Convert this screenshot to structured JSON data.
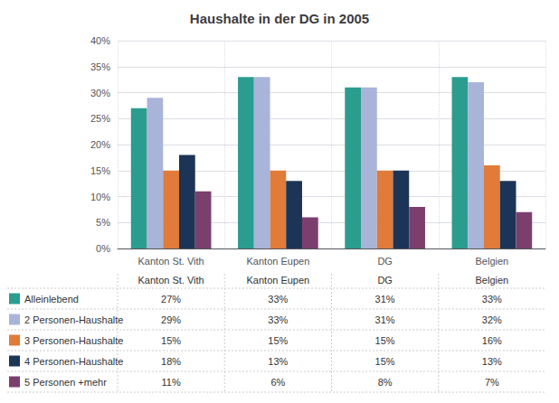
{
  "chart_data": {
    "type": "bar",
    "title": "Haushalte in der DG in 2005",
    "categories": [
      "Kanton St. Vith",
      "Kanton Eupen",
      "DG",
      "Belgien"
    ],
    "series": [
      {
        "name": "Alleinlebend",
        "color": "#2a9d8f",
        "values": [
          27,
          33,
          31,
          33
        ],
        "value_labels": [
          "27%",
          "33%",
          "31%",
          "33%"
        ]
      },
      {
        "name": "2 Personen-Haushalte",
        "color": "#a8b4d8",
        "values": [
          29,
          33,
          31,
          32
        ],
        "value_labels": [
          "29%",
          "33%",
          "31%",
          "32%"
        ]
      },
      {
        "name": "3 Personen-Haushalte",
        "color": "#e07b39",
        "values": [
          15,
          15,
          15,
          16
        ],
        "value_labels": [
          "15%",
          "15%",
          "15%",
          "16%"
        ]
      },
      {
        "name": "4 Personen-Haushalte",
        "color": "#1c3557",
        "values": [
          18,
          13,
          15,
          13
        ],
        "value_labels": [
          "18%",
          "13%",
          "15%",
          "13%"
        ]
      },
      {
        "name": "5 Personen +mehr",
        "color": "#7b3f6e",
        "values": [
          11,
          6,
          8,
          7
        ],
        "value_labels": [
          "11%",
          "6%",
          "8%",
          "7%"
        ]
      }
    ],
    "ylim": [
      0,
      40
    ],
    "yticks": [
      {
        "value": 0,
        "label": "0%"
      },
      {
        "value": 5,
        "label": "5%"
      },
      {
        "value": 10,
        "label": "10%"
      },
      {
        "value": 15,
        "label": "15%"
      },
      {
        "value": 20,
        "label": "20%"
      },
      {
        "value": 25,
        "label": "25%"
      },
      {
        "value": 30,
        "label": "30%"
      },
      {
        "value": 35,
        "label": "35%"
      },
      {
        "value": 40,
        "label": "40%"
      }
    ],
    "grid": true,
    "legend": "bottom",
    "data_labels": true
  }
}
